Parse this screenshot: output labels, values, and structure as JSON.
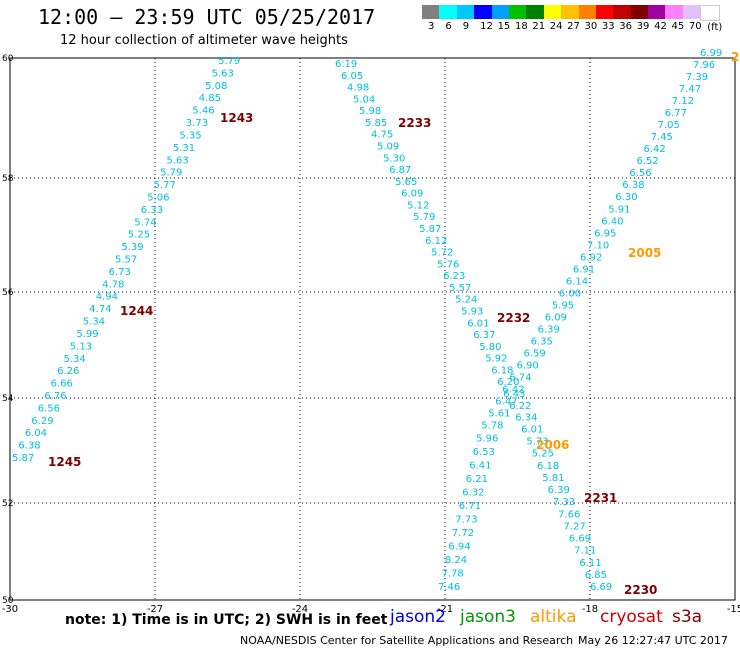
{
  "header": {
    "title": "12:00 — 23:59 UTC 05/25/2017",
    "subtitle": "12 hour collection of altimeter wave heights"
  },
  "colorbar": {
    "colors": [
      "#808080",
      "#00ffff",
      "#00c8ff",
      "#0000ff",
      "#00a0ff",
      "#00c000",
      "#008000",
      "#ffff00",
      "#ffc000",
      "#ff8000",
      "#ff0000",
      "#c00000",
      "#800000",
      "#a000a0",
      "#ff80ff",
      "#e0c0ff",
      "#ffffff"
    ],
    "labels": [
      "3",
      "6",
      "9",
      "12",
      "15",
      "18",
      "21",
      "24",
      "27",
      "30",
      "33",
      "36",
      "39",
      "42",
      "45",
      "70",
      "(ft)"
    ]
  },
  "axes": {
    "x_ticks": [
      "-30",
      "-27",
      "-24",
      "-21",
      "-18",
      "-15"
    ],
    "y_ticks": [
      "60",
      "58",
      "56",
      "54",
      "52",
      "50"
    ]
  },
  "tracks": [
    {
      "id": "t1",
      "values": [
        "5.79",
        "5.63",
        "5.08",
        "4.85",
        "5.46",
        "3.73",
        "5.35",
        "5.31",
        "5.63",
        "5.79",
        "5.77",
        "5.06",
        "6.33",
        "5.74",
        "5.25",
        "5.39",
        "5.57",
        "6.73",
        "4.78",
        "4.94",
        "4.74",
        "5.34",
        "5.99",
        "5.13",
        "5.34",
        "6.26",
        "6.66",
        "6.76",
        "6.56",
        "6.29",
        "6.04",
        "6.38",
        "5.87"
      ]
    },
    {
      "id": "t2",
      "values": [
        "6.19",
        "6.05",
        "4.98",
        "5.04",
        "5.98",
        "5.85",
        "4.75",
        "5.09",
        "5.30",
        "6.87",
        "5.65",
        "6.09",
        "5.12",
        "5.79",
        "5.87",
        "6.12",
        "5.72",
        "5.76",
        "6.23",
        "5.57",
        "5.24",
        "5.93",
        "6.01",
        "6.37",
        "5.80",
        "5.92",
        "6.18",
        "6.20",
        "6.43",
        "6.22",
        "6.34",
        "6.01",
        "5.73",
        "5.25",
        "6.18",
        "5.81",
        "6.39",
        "7.33",
        "7.66",
        "7.27",
        "6.69",
        "7.11",
        "6.11",
        "6.85",
        "6.69"
      ]
    },
    {
      "id": "t3",
      "values": [
        "6.99",
        "7.96",
        "7.39",
        "7.47",
        "7.12",
        "6.77",
        "7.05",
        "7.45",
        "6.42",
        "6.52",
        "6.56",
        "6.38",
        "6.30",
        "5.91",
        "6.40",
        "6.95",
        "7.10",
        "6.92",
        "6.91",
        "6.14",
        "6.00",
        "5.95",
        "6.09",
        "6.39",
        "6.35",
        "6.59",
        "6.90",
        "6.74",
        "6.42",
        "6.47",
        "5.61",
        "5.78",
        "5.96",
        "6.53",
        "6.41",
        "6.21",
        "6.32",
        "6.71",
        "7.73",
        "7.72",
        "6.94",
        "8.24",
        "7.78",
        "7.46"
      ]
    }
  ],
  "time_labels": [
    {
      "text": "1243",
      "color": "#800000"
    },
    {
      "text": "1244",
      "color": "#800000"
    },
    {
      "text": "1245",
      "color": "#800000"
    },
    {
      "text": "2233",
      "color": "#800000"
    },
    {
      "text": "2232",
      "color": "#800000"
    },
    {
      "text": "2231",
      "color": "#800000"
    },
    {
      "text": "2230",
      "color": "#800000"
    },
    {
      "text": "2005",
      "color": "#ff9900"
    },
    {
      "text": "2006",
      "color": "#ff9900"
    },
    {
      "text": "2",
      "color": "#ff9900"
    }
  ],
  "footer": {
    "note": "note:  1) Time is in UTC;  2) SWH is in feet",
    "satellites": [
      {
        "name": "jason2",
        "color": "#0000dd"
      },
      {
        "name": "jason3",
        "color": "#009900"
      },
      {
        "name": "altika",
        "color": "#ff9900"
      },
      {
        "name": "cryosat",
        "color": "#cc0000"
      },
      {
        "name": "s3a",
        "color": "#800000"
      }
    ],
    "credit": "NOAA/NESDIS Center for Satellite Applications and Research",
    "timestamp": "May 26 12:27:47 UTC 2017"
  },
  "value_color": "#00c0e0"
}
